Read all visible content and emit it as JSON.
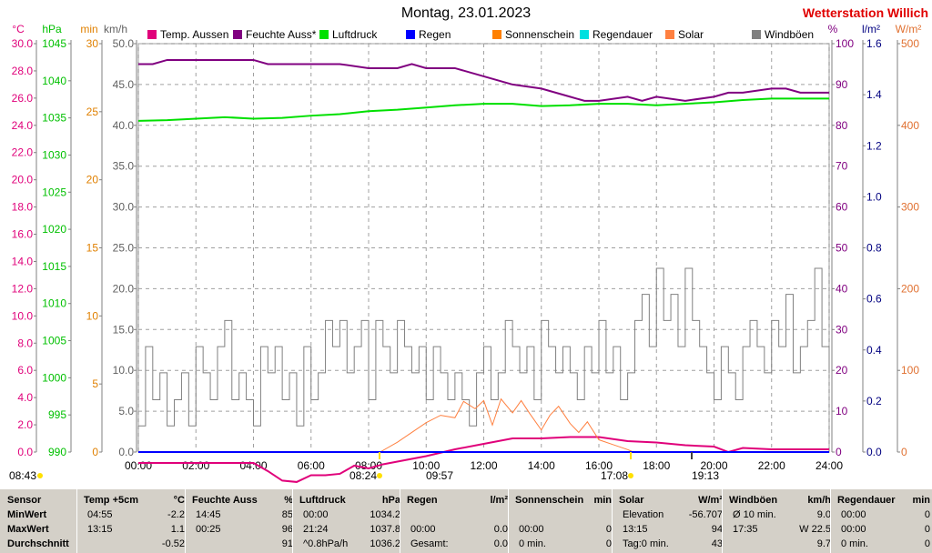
{
  "header": {
    "title": "Montag, 23.01.2023",
    "station": "Wetterstation Willich"
  },
  "axis_units": {
    "temp": "°C",
    "pressure": "hPa",
    "minutes": "min",
    "wind": "km/h",
    "humidity": "%",
    "rain": "l/m²",
    "solar": "W/m²"
  },
  "legend": [
    {
      "label": "Temp. Aussen",
      "color": "#e0007a"
    },
    {
      "label": "Feuchte Auss*",
      "color": "#800080"
    },
    {
      "label": "Luftdruck",
      "color": "#00e000"
    },
    {
      "label": "Regen",
      "color": "#0000ff"
    },
    {
      "label": "Sonnenschein",
      "color": "#ff8000"
    },
    {
      "label": "Regendauer",
      "color": "#00e0e0"
    },
    {
      "label": "Solar",
      "color": "#ff8040"
    },
    {
      "label": "Windböen",
      "color": "#808080"
    }
  ],
  "markers": {
    "left_time": "08:43",
    "sunrise": "08:24",
    "noon": "09:57",
    "sunset": "17:08",
    "moon": "19:13"
  },
  "chart_data": {
    "type": "line",
    "x_ticks": [
      "00:00",
      "02:00",
      "04:00",
      "06:00",
      "08:00",
      "10:00",
      "12:00",
      "14:00",
      "16:00",
      "18:00",
      "20:00",
      "22:00",
      "24:00"
    ],
    "xlim": [
      0,
      24
    ],
    "axes": {
      "temp_c": {
        "ticks": [
          "30.0",
          "28.0",
          "26.0",
          "24.0",
          "22.0",
          "20.0",
          "18.0",
          "16.0",
          "14.0",
          "12.0",
          "10.0",
          "8.0",
          "6.0",
          "4.0",
          "2.0",
          "0.0"
        ],
        "lim": [
          0,
          30
        ],
        "color": "#e0007a"
      },
      "pressure_hpa": {
        "ticks": [
          "1045",
          "1040",
          "1035",
          "1030",
          "1025",
          "1020",
          "1015",
          "1010",
          "1005",
          "1000",
          "995",
          "990"
        ],
        "lim": [
          990,
          1045
        ],
        "color": "#00c000"
      },
      "minutes": {
        "ticks": [
          "30",
          "25",
          "20",
          "15",
          "10",
          "5",
          "0"
        ],
        "lim": [
          0,
          30
        ],
        "color": "#e08000"
      },
      "wind_kmh": {
        "ticks": [
          "50.0",
          "45.0",
          "40.0",
          "35.0",
          "30.0",
          "25.0",
          "20.0",
          "15.0",
          "10.0",
          "5.0",
          "0.0"
        ],
        "lim": [
          0,
          50
        ],
        "color": "#606060"
      },
      "humidity_pct": {
        "ticks": [
          "100",
          "90",
          "80",
          "70",
          "60",
          "50",
          "40",
          "30",
          "20",
          "10",
          "0"
        ],
        "lim": [
          0,
          100
        ],
        "color": "#800080"
      },
      "rain_lm2": {
        "ticks": [
          "1.6",
          "1.4",
          "1.2",
          "1.0",
          "0.8",
          "0.6",
          "0.4",
          "0.2",
          "0.0"
        ],
        "lim": [
          0,
          1.6
        ],
        "color": "#000080"
      },
      "solar_wm2": {
        "ticks": [
          "500",
          "400",
          "300",
          "200",
          "100",
          "0"
        ],
        "lim": [
          0,
          500
        ],
        "color": "#e07030"
      }
    },
    "series": [
      {
        "name": "Temp. Aussen",
        "axis": "temp_c",
        "color": "#e0007a",
        "x": [
          0,
          1,
          2,
          3,
          4,
          4.5,
          5,
          5.5,
          6,
          6.5,
          7,
          7.5,
          8,
          8.5,
          9,
          10,
          11,
          12,
          13,
          14,
          15,
          16,
          17,
          18,
          19,
          20,
          20.5,
          21,
          22,
          23,
          24
        ],
        "y": [
          -0.8,
          -0.8,
          -0.8,
          -0.8,
          -0.8,
          -1.4,
          -2.1,
          -2.2,
          -1.7,
          -1.7,
          -1.6,
          -1.0,
          -1.2,
          -0.9,
          -0.7,
          -0.3,
          0.2,
          0.6,
          1.0,
          1.0,
          1.1,
          1.1,
          0.8,
          0.7,
          0.5,
          0.4,
          0.0,
          0.3,
          0.2,
          0.2,
          0.2
        ]
      },
      {
        "name": "Feuchte Auss*",
        "axis": "humidity_pct",
        "color": "#800080",
        "x": [
          0,
          0.5,
          1,
          2,
          3,
          4,
          4.5,
          5,
          6,
          7,
          8,
          8.5,
          9,
          9.5,
          10,
          11,
          12,
          12.5,
          13,
          14,
          15,
          15.5,
          16,
          17,
          17.5,
          18,
          19,
          20,
          20.5,
          21,
          22,
          22.5,
          23,
          24
        ],
        "y": [
          95,
          95,
          96,
          96,
          96,
          96,
          95,
          95,
          95,
          95,
          94,
          94,
          94,
          95,
          94,
          94,
          92,
          91,
          90,
          89,
          87,
          86,
          86,
          87,
          86,
          87,
          86,
          87,
          88,
          88,
          89,
          89,
          88,
          88
        ]
      },
      {
        "name": "Luftdruck",
        "axis": "pressure_hpa",
        "color": "#00e000",
        "x": [
          0,
          1,
          2,
          3,
          4,
          5,
          6,
          7,
          8,
          9,
          10,
          11,
          12,
          13,
          14,
          15,
          16,
          17,
          18,
          19,
          20,
          21,
          22,
          23,
          24
        ],
        "y": [
          1034.6,
          1034.7,
          1034.9,
          1035.1,
          1034.9,
          1035.0,
          1035.3,
          1035.5,
          1035.9,
          1036.1,
          1036.4,
          1036.7,
          1036.9,
          1036.9,
          1036.6,
          1036.7,
          1036.9,
          1036.9,
          1036.7,
          1036.9,
          1037.1,
          1037.4,
          1037.6,
          1037.6,
          1037.6
        ]
      },
      {
        "name": "Solar",
        "axis": "solar_wm2",
        "color": "#ff8040",
        "x": [
          8.4,
          9,
          9.5,
          10,
          10.5,
          11,
          11.3,
          11.7,
          12,
          12.3,
          12.6,
          13,
          13.3,
          13.6,
          14,
          14.3,
          14.6,
          15,
          15.3,
          15.6,
          16,
          16.5,
          17,
          17.2
        ],
        "y": [
          0,
          12,
          24,
          36,
          45,
          42,
          62,
          53,
          63,
          33,
          65,
          48,
          63,
          47,
          27,
          45,
          56,
          35,
          24,
          37,
          15,
          9,
          3,
          0
        ]
      },
      {
        "name": "Regen",
        "axis": "rain_lm2",
        "color": "#0000ff",
        "x": [
          0,
          24
        ],
        "y": [
          0,
          0
        ]
      }
    ],
    "wind_gusts": {
      "name": "Windböen",
      "axis": "wind_kmh",
      "color": "#808080",
      "x": [
        0,
        0.25,
        0.5,
        0.75,
        1,
        1.25,
        1.5,
        1.75,
        2,
        2.25,
        2.5,
        2.75,
        3,
        3.25,
        3.5,
        3.75,
        4,
        4.25,
        4.5,
        4.75,
        5,
        5.25,
        5.5,
        5.75,
        6,
        6.25,
        6.5,
        6.75,
        7,
        7.25,
        7.5,
        7.75,
        8,
        8.25,
        8.5,
        8.75,
        9,
        9.25,
        9.5,
        9.75,
        10,
        10.25,
        10.5,
        10.75,
        11,
        11.25,
        11.5,
        11.75,
        12,
        12.25,
        12.5,
        12.75,
        13,
        13.25,
        13.5,
        13.75,
        14,
        14.25,
        14.5,
        14.75,
        15,
        15.25,
        15.5,
        15.75,
        16,
        16.25,
        16.5,
        16.75,
        17,
        17.25,
        17.5,
        17.75,
        18,
        18.25,
        18.5,
        18.75,
        19,
        19.25,
        19.5,
        19.75,
        20,
        20.25,
        20.5,
        20.75,
        21,
        21.25,
        21.5,
        21.75,
        22,
        22.25,
        22.5,
        22.75,
        23,
        23.25,
        23.5,
        23.75,
        24
      ],
      "y": [
        3.2,
        12.9,
        6.4,
        9.7,
        3.2,
        6.4,
        9.7,
        3.2,
        12.9,
        9.7,
        6.4,
        12.9,
        16.1,
        6.4,
        9.7,
        6.4,
        3.2,
        12.9,
        9.7,
        12.9,
        6.4,
        9.7,
        3.2,
        12.9,
        6.4,
        9.7,
        16.1,
        12.9,
        16.1,
        9.7,
        12.9,
        16.1,
        6.4,
        16.1,
        12.9,
        9.7,
        16.1,
        12.9,
        9.7,
        12.9,
        6.4,
        12.9,
        9.7,
        6.4,
        9.7,
        6.4,
        3.2,
        9.7,
        12.9,
        6.4,
        9.7,
        16.1,
        12.9,
        9.7,
        12.9,
        6.4,
        16.1,
        12.9,
        9.7,
        12.9,
        9.7,
        6.4,
        12.9,
        9.7,
        16.1,
        9.7,
        12.9,
        6.4,
        9.7,
        16.1,
        19.3,
        12.9,
        22.5,
        16.1,
        19.3,
        12.9,
        22.5,
        16.1,
        12.9,
        9.7,
        6.4,
        12.9,
        9.7,
        6.4,
        12.9,
        16.1,
        12.9,
        9.7,
        16.1,
        12.9,
        19.3,
        9.7,
        12.9,
        16.1,
        22.5,
        12.9,
        9.7
      ]
    }
  },
  "stats": {
    "row_labels": [
      "Sensor",
      "MinWert",
      "MaxWert",
      "Durchschnitt"
    ],
    "groups": [
      {
        "title": "Temp +5cm",
        "unit": "°C",
        "rows": [
          [
            "04:55",
            "-2.2"
          ],
          [
            "13:15",
            "1.1"
          ],
          [
            "",
            "-0.52"
          ]
        ]
      },
      {
        "title": "Feuchte Auss",
        "unit": "%",
        "rows": [
          [
            "14:45",
            "85"
          ],
          [
            "00:25",
            "96"
          ],
          [
            "",
            "91"
          ]
        ]
      },
      {
        "title": "Luftdruck",
        "unit": "hPa",
        "rows": [
          [
            "00:00",
            "1034.2"
          ],
          [
            "21:24",
            "1037.8"
          ],
          [
            "^0.8hPa/h",
            "1036.2"
          ]
        ]
      },
      {
        "title": "Regen",
        "unit": "l/m²",
        "rows": [
          [
            "",
            ""
          ],
          [
            "00:00",
            "0.0"
          ],
          [
            "Gesamt:",
            "0.0"
          ]
        ]
      },
      {
        "title": "Sonnenschein",
        "unit": "min",
        "rows": [
          [
            "",
            ""
          ],
          [
            "00:00",
            "0"
          ],
          [
            "0 min.",
            "0"
          ]
        ]
      },
      {
        "title": "Solar",
        "unit": "W/m²",
        "rows": [
          [
            "Elevation",
            "-56.707"
          ],
          [
            "13:15",
            "94"
          ],
          [
            "Tag:0 min.",
            "43"
          ]
        ]
      },
      {
        "title": "Windböen",
        "unit": "km/h",
        "rows": [
          [
            "Ø 10 min.",
            "9.0"
          ],
          [
            "17:35",
            "W 22.5"
          ],
          [
            "",
            "9.7"
          ]
        ]
      },
      {
        "title": "Regendauer",
        "unit": "min",
        "rows": [
          [
            "00:00",
            "0"
          ],
          [
            "00:00",
            "0"
          ],
          [
            "0 min.",
            "0"
          ]
        ]
      }
    ]
  }
}
